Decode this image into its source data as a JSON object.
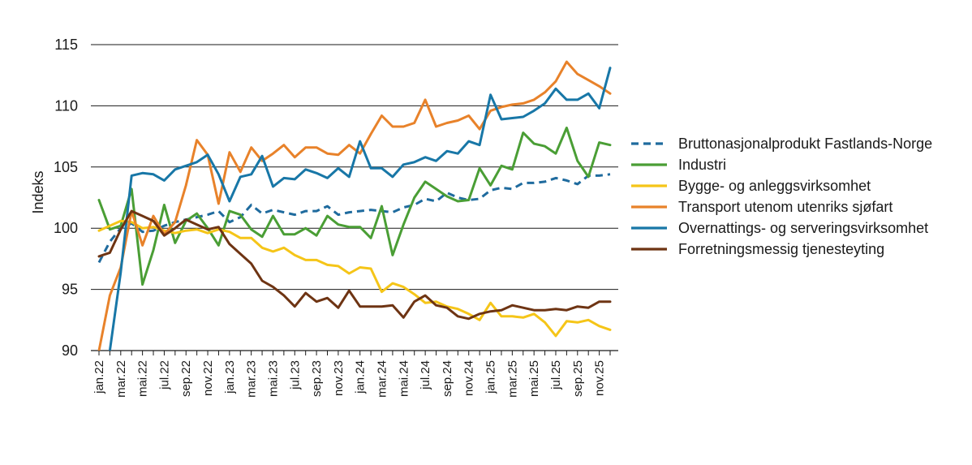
{
  "chart_data": {
    "type": "line",
    "ylabel": "Indeks",
    "xlabel": "",
    "ylim": [
      90,
      115
    ],
    "yticks": [
      90,
      95,
      100,
      105,
      110,
      115
    ],
    "grid": "horizontal",
    "legend_position": "right",
    "x": [
      "jan.22",
      "feb.22",
      "mar.22",
      "apr.22",
      "mai.22",
      "jun.22",
      "jul.22",
      "aug.22",
      "sep.22",
      "okt.22",
      "nov.22",
      "des.22",
      "jan.23",
      "feb.23",
      "mar.23",
      "apr.23",
      "mai.23",
      "jun.23",
      "jul.23",
      "aug.23",
      "sep.23",
      "okt.23",
      "nov.23",
      "des.23",
      "jan.24",
      "feb.24",
      "mar.24",
      "apr.24",
      "mai.24",
      "jun.24",
      "jul.24",
      "aug.24",
      "sep.24",
      "okt.24",
      "nov.24",
      "des.24",
      "jan.25",
      "feb.25",
      "mar.25",
      "apr.25",
      "mai.25",
      "jun.25",
      "jul.25",
      "aug.25",
      "sep.25",
      "okt.25",
      "nov.25",
      "des.25"
    ],
    "x_tick_labels": [
      "jan.22",
      "mar.22",
      "mai.22",
      "jul.22",
      "sep.22",
      "nov.22",
      "jan.23",
      "mar.23",
      "mai.23",
      "jul.23",
      "sep.23",
      "nov.23",
      "jan.24",
      "mar.24",
      "mai.24",
      "jul.24",
      "sep.24",
      "nov.24",
      "jan.25",
      "mar.25",
      "mai.25",
      "jul.25",
      "sep.25",
      "nov.25"
    ],
    "series": [
      {
        "name": "Bruttonasjonalprodukt Fastlands-Norge",
        "color": "#1f6b9e",
        "dash": true,
        "values": [
          97.2,
          98.9,
          100.0,
          100.4,
          99.7,
          99.8,
          100.2,
          100.5,
          100.7,
          100.9,
          101.1,
          101.4,
          100.5,
          100.9,
          101.9,
          101.2,
          101.5,
          101.3,
          101.1,
          101.4,
          101.4,
          101.8,
          101.1,
          101.3,
          101.4,
          101.5,
          101.4,
          101.3,
          101.7,
          101.9,
          102.4,
          102.2,
          102.9,
          102.5,
          102.3,
          102.4,
          103.1,
          103.3,
          103.2,
          103.7,
          103.7,
          103.8,
          104.1,
          103.9,
          103.6,
          104.3,
          104.3,
          104.4
        ]
      },
      {
        "name": "Industri",
        "color": "#4a9e35",
        "values": [
          102.3,
          99.9,
          100.2,
          103.2,
          95.4,
          98.2,
          101.9,
          98.8,
          100.6,
          101.2,
          100.0,
          98.6,
          101.4,
          101.1,
          99.9,
          99.3,
          101.0,
          99.5,
          99.5,
          100.0,
          99.4,
          101.0,
          100.3,
          100.1,
          100.1,
          99.2,
          101.8,
          97.8,
          100.3,
          102.5,
          103.8,
          103.2,
          102.6,
          102.2,
          102.3,
          104.9,
          103.5,
          105.1,
          104.8,
          107.8,
          106.9,
          106.7,
          106.1,
          108.2,
          105.5,
          104.2,
          107.0,
          106.8
        ]
      },
      {
        "name": "Bygge- og anleggsvirksomhet",
        "color": "#f5c518",
        "values": [
          99.8,
          100.2,
          100.6,
          100.5,
          100.0,
          100.1,
          99.8,
          99.6,
          99.8,
          99.9,
          99.6,
          99.9,
          99.7,
          99.2,
          99.2,
          98.4,
          98.1,
          98.4,
          97.8,
          97.4,
          97.4,
          97.0,
          96.9,
          96.3,
          96.8,
          96.7,
          94.8,
          95.5,
          95.2,
          94.6,
          93.9,
          94.0,
          93.6,
          93.4,
          93.0,
          92.5,
          93.9,
          92.8,
          92.8,
          92.7,
          93.0,
          92.3,
          91.2,
          92.4,
          92.3,
          92.5,
          92.0,
          91.7
        ]
      },
      {
        "name": "Transport utenom utenriks sjøfart",
        "color": "#e8822a",
        "values": [
          90.0,
          94.5,
          96.8,
          101.4,
          98.6,
          101.0,
          99.5,
          100.5,
          103.5,
          107.2,
          106.0,
          102.0,
          106.2,
          104.6,
          106.6,
          105.5,
          106.1,
          106.8,
          105.8,
          106.6,
          106.6,
          106.1,
          106.0,
          106.8,
          106.1,
          107.7,
          109.2,
          108.3,
          108.3,
          108.6,
          110.5,
          108.3,
          108.6,
          108.8,
          109.2,
          108.1,
          109.6,
          109.9,
          110.1,
          110.2,
          110.5,
          111.1,
          112.0,
          113.6,
          112.6,
          112.1,
          111.6,
          111.0
        ]
      },
      {
        "name": "Overnattings- og serveringsvirksomhet",
        "color": "#1877a7",
        "values": [
          84.0,
          90.0,
          96.4,
          104.3,
          104.5,
          104.4,
          103.9,
          104.8,
          105.1,
          105.4,
          106.0,
          104.4,
          102.2,
          104.2,
          104.4,
          105.9,
          103.4,
          104.1,
          104.0,
          104.8,
          104.5,
          104.1,
          104.9,
          104.2,
          107.1,
          104.9,
          104.9,
          104.2,
          105.2,
          105.4,
          105.8,
          105.5,
          106.3,
          106.1,
          107.1,
          106.8,
          110.9,
          108.9,
          109.0,
          109.1,
          109.6,
          110.2,
          111.4,
          110.5,
          110.5,
          111.0,
          109.8,
          113.1
        ]
      },
      {
        "name": "Forretningsmessig tjenesteyting",
        "color": "#6e3413",
        "values": [
          97.7,
          98.0,
          99.9,
          101.4,
          101.0,
          100.6,
          99.4,
          100.0,
          100.7,
          100.3,
          99.9,
          100.1,
          98.7,
          97.9,
          97.1,
          95.7,
          95.2,
          94.5,
          93.6,
          94.7,
          94.0,
          94.3,
          93.5,
          94.9,
          93.6,
          93.6,
          93.6,
          93.7,
          92.7,
          94.0,
          94.5,
          93.7,
          93.5,
          92.8,
          92.6,
          93.0,
          93.2,
          93.3,
          93.7,
          93.5,
          93.3,
          93.3,
          93.4,
          93.3,
          93.6,
          93.5,
          94.0,
          94.0
        ]
      }
    ]
  }
}
